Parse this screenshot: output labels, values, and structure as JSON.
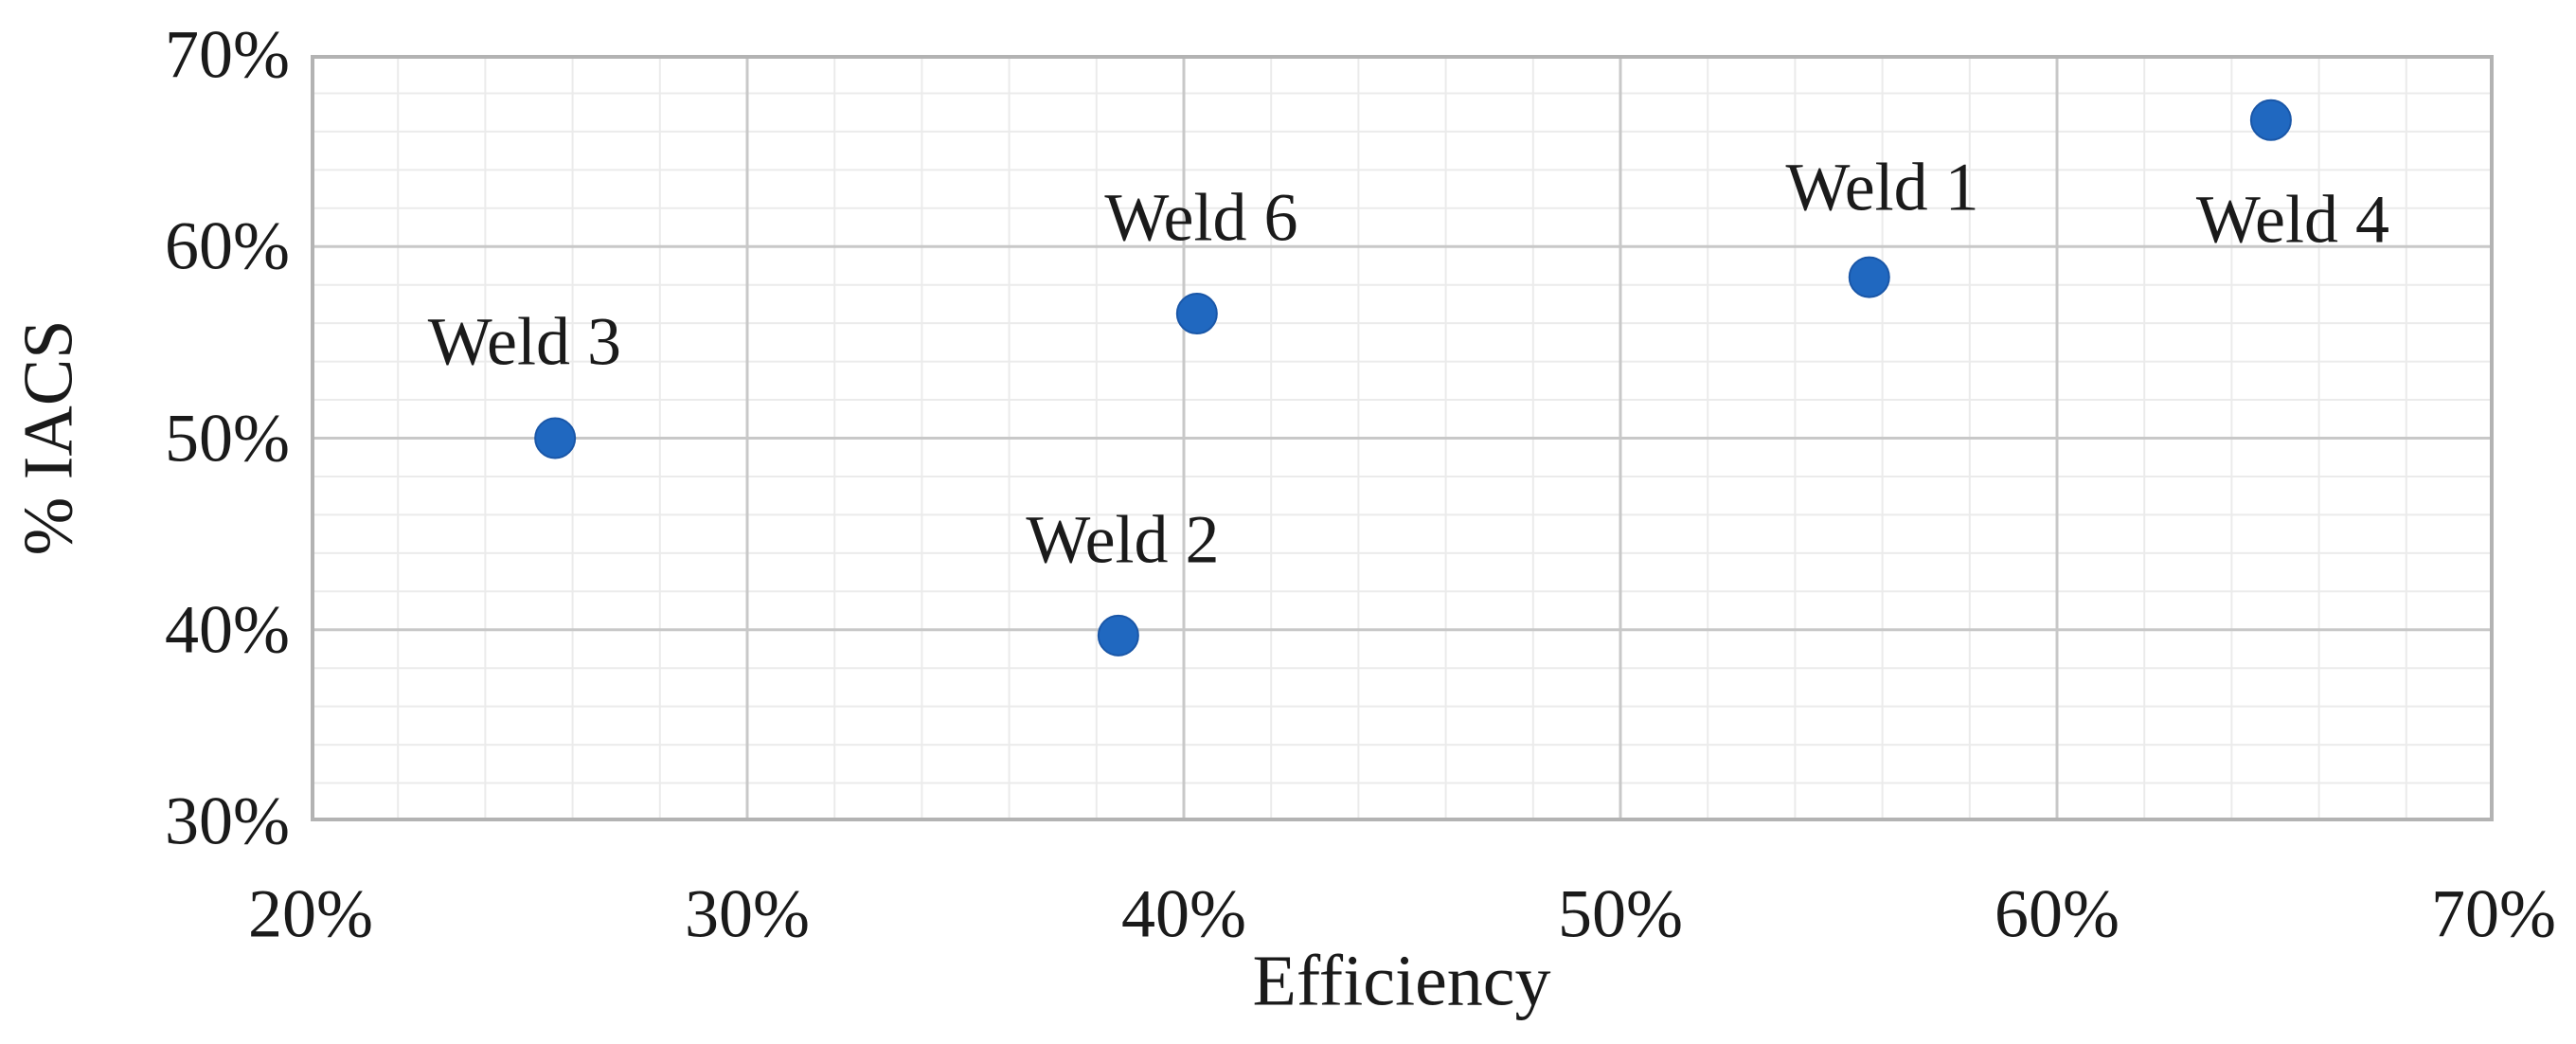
{
  "chart_data": {
    "type": "scatter",
    "title": "",
    "xlabel": "Efficiency",
    "ylabel": "% IACS",
    "xlim": [
      20,
      70
    ],
    "ylim": [
      30,
      70
    ],
    "x_major_tick_values": [
      20,
      30,
      40,
      50,
      60,
      70
    ],
    "x_major_tick_labels": [
      "20%",
      "30%",
      "40%",
      "50%",
      "60%",
      "70%"
    ],
    "y_major_tick_values": [
      30,
      40,
      50,
      60,
      70
    ],
    "y_major_tick_labels": [
      "30%",
      "40%",
      "50%",
      "60%",
      "70%"
    ],
    "minor_step": 2,
    "grid": true,
    "legend": "none",
    "points": [
      {
        "label": "Weld 1",
        "x": 55.7,
        "y": 58.4,
        "label_pos": [
          56.0,
          63.1
        ]
      },
      {
        "label": "Weld 2",
        "x": 38.5,
        "y": 39.7,
        "label_pos": [
          38.6,
          44.7
        ]
      },
      {
        "label": "Weld 3",
        "x": 25.6,
        "y": 50.0,
        "label_pos": [
          24.9,
          55.0
        ]
      },
      {
        "label": "Weld 4",
        "x": 64.9,
        "y": 66.6,
        "label_pos": [
          65.4,
          61.4
        ]
      },
      {
        "label": "Weld 6",
        "x": 40.3,
        "y": 56.5,
        "label_pos": [
          40.4,
          61.5
        ]
      }
    ],
    "colors": {
      "point_fill": "#2068c0",
      "point_edge": "#1a57a8",
      "major_grid": "#c8c8c8",
      "minor_grid": "#ebebeb",
      "border": "#b3b3b3",
      "text": "#1a1a1a"
    },
    "point_radius_px": 21
  }
}
